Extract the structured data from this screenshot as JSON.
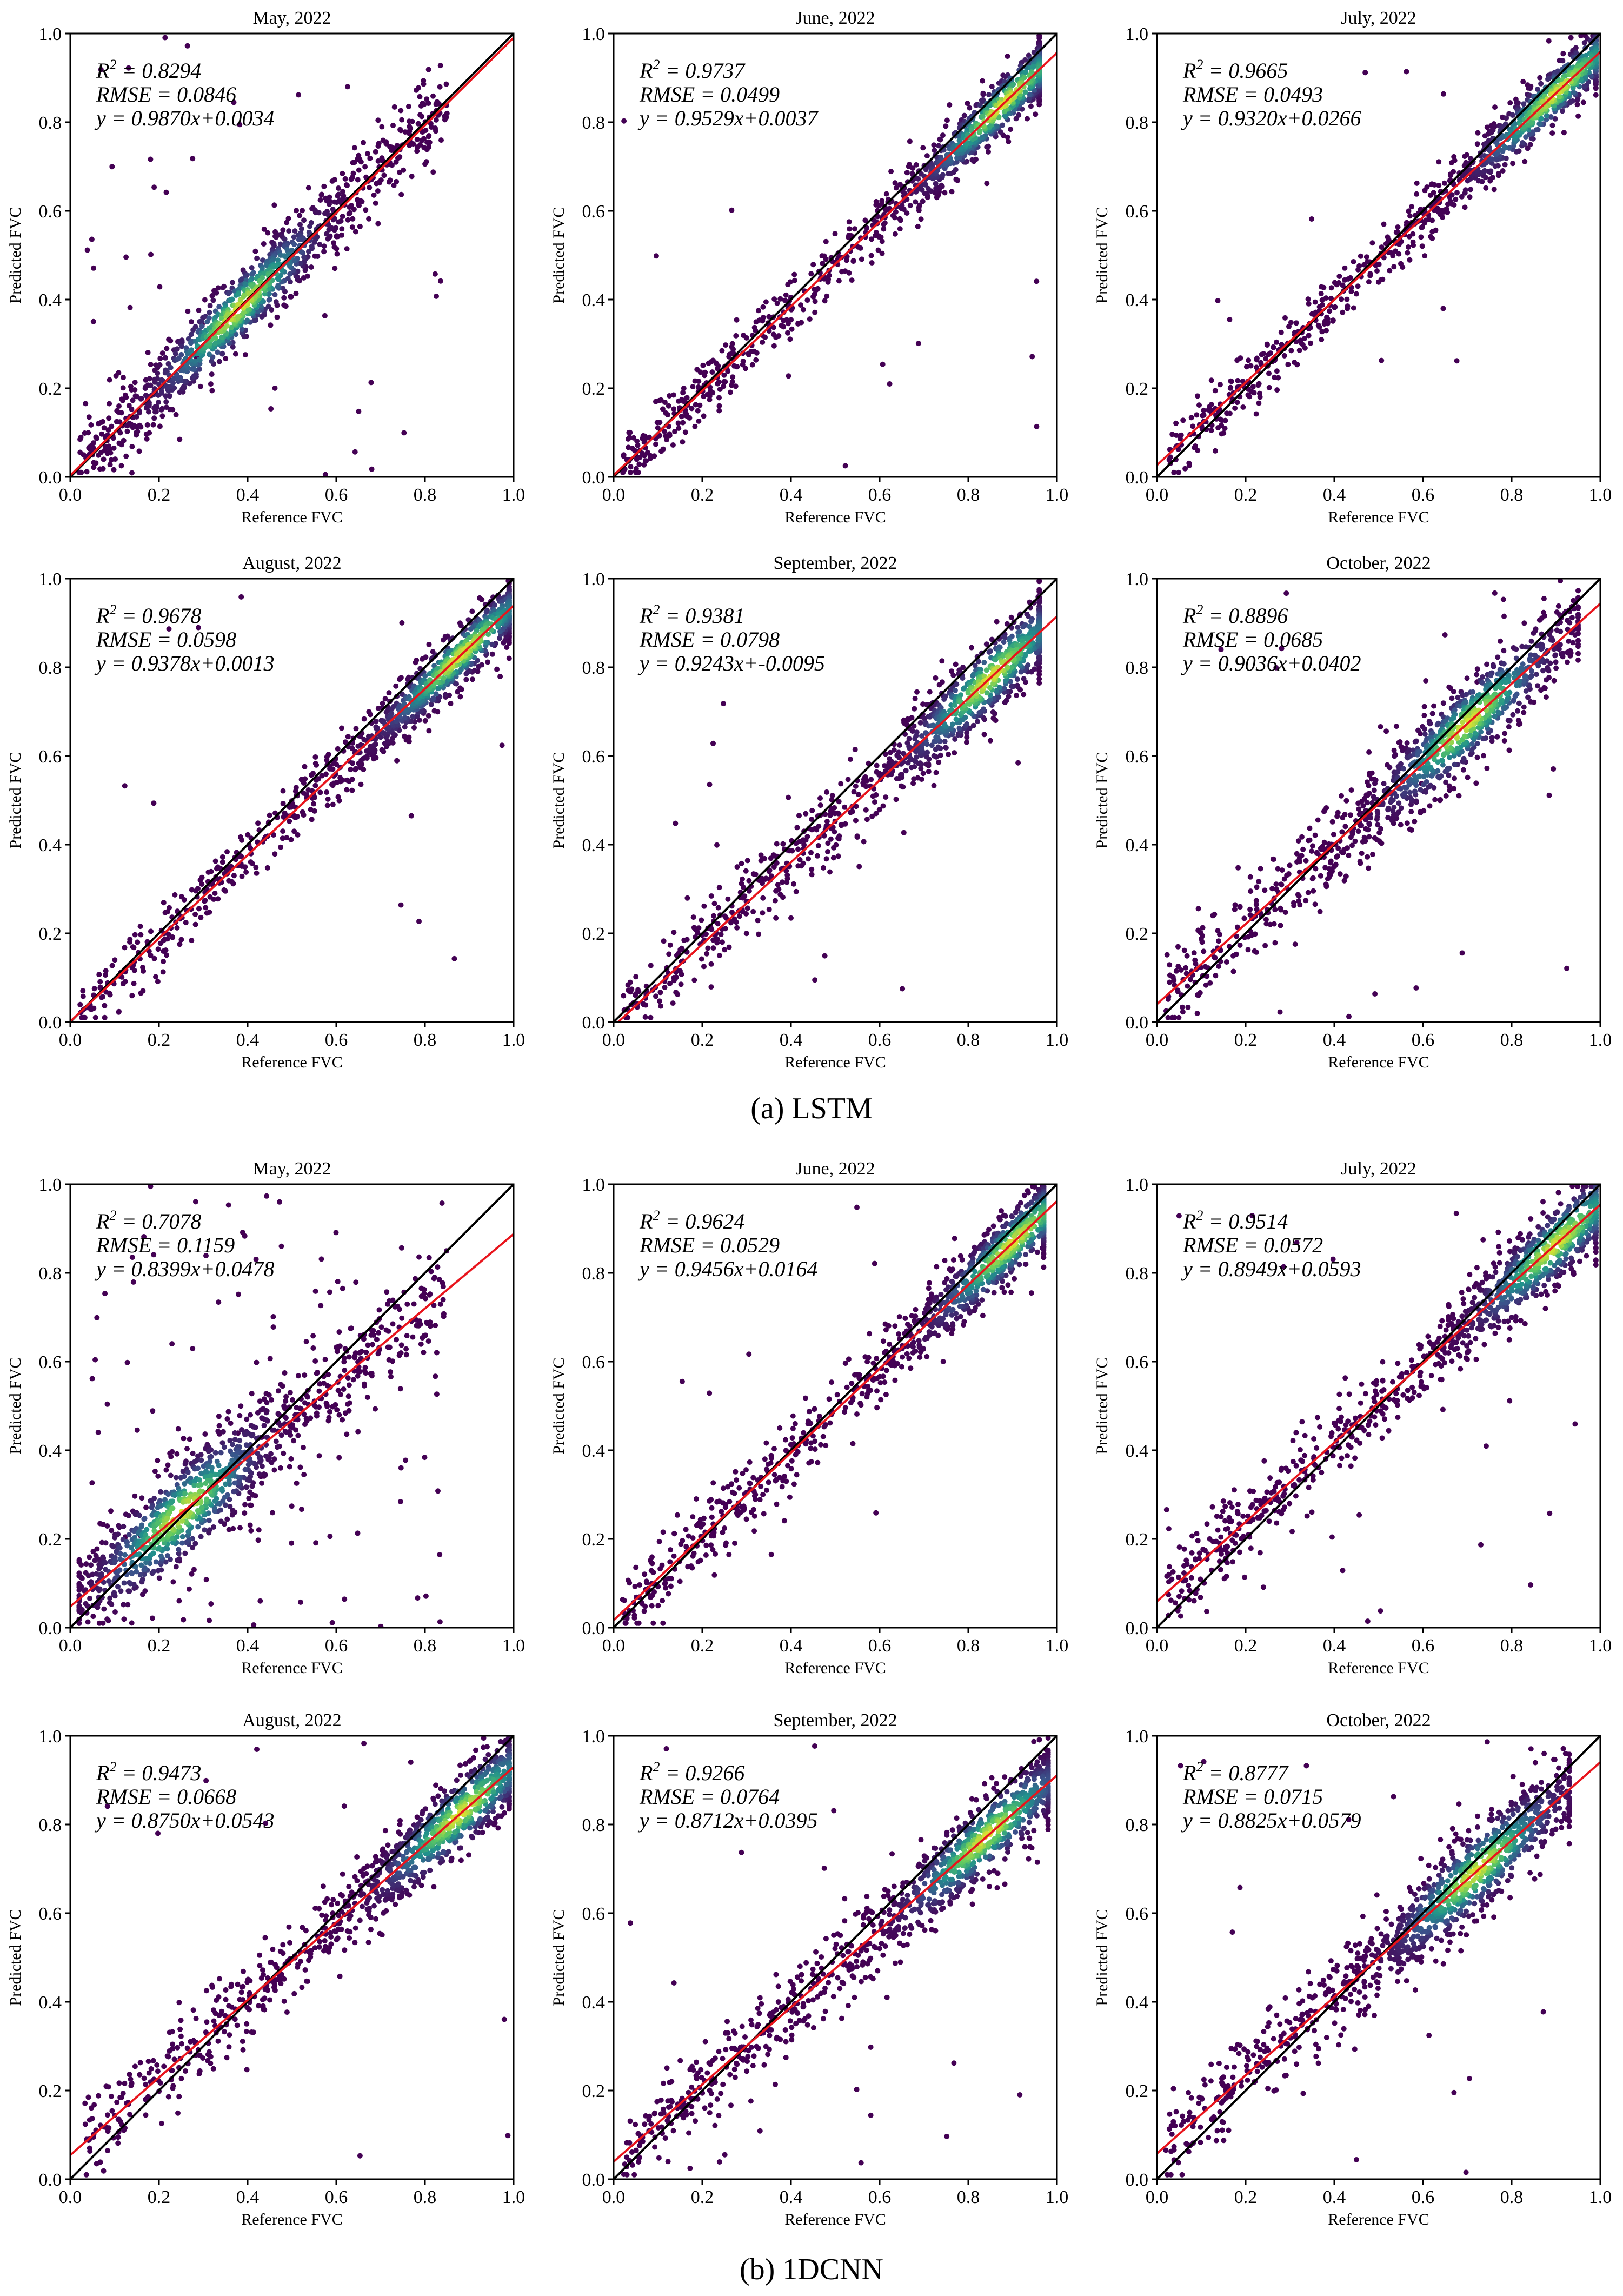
{
  "figure": {
    "captions": [
      "(a) LSTM",
      "(b) 1DCNN"
    ],
    "colors": {
      "reference_line": "#000000",
      "fit_line": "#e8141c",
      "density_low": "#440154",
      "density_mid": "#21918c",
      "density_high": "#fde725"
    }
  },
  "chart_data": [
    {
      "type": "scatter",
      "model": "LSTM",
      "title": "May, 2022",
      "xlabel": "Reference FVC",
      "ylabel": "Predicted FVC",
      "xlim": [
        0,
        1
      ],
      "ylim": [
        0,
        1
      ],
      "xticks": [
        "0.0",
        "0.2",
        "0.4",
        "0.6",
        "0.8",
        "1.0"
      ],
      "yticks": [
        "0.0",
        "0.2",
        "0.4",
        "0.6",
        "0.8",
        "1.0"
      ],
      "r2_text": "= 0.8294",
      "rmse_text": "RMSE = 0.0846",
      "eq_text": "y = 0.9870x+0.0034",
      "fit": {
        "slope": 0.987,
        "intercept": 0.0034
      },
      "spread": 0.045,
      "x_range": [
        0.02,
        0.85
      ],
      "density_center": 0.38,
      "outlier_frac": 0.05
    },
    {
      "type": "scatter",
      "model": "LSTM",
      "title": "June, 2022",
      "xlabel": "Reference FVC",
      "ylabel": "Predicted FVC",
      "xlim": [
        0,
        1
      ],
      "ylim": [
        0,
        1
      ],
      "xticks": [
        "0.0",
        "0.2",
        "0.4",
        "0.6",
        "0.8",
        "1.0"
      ],
      "yticks": [
        "0.0",
        "0.2",
        "0.4",
        "0.6",
        "0.8",
        "1.0"
      ],
      "r2_text": "= 0.9737",
      "rmse_text": "RMSE = 0.0499",
      "eq_text": "y = 0.9529x+0.0037",
      "fit": {
        "slope": 0.9529,
        "intercept": 0.0037
      },
      "spread": 0.035,
      "x_range": [
        0.02,
        0.96
      ],
      "density_center": 0.88,
      "outlier_frac": 0.01
    },
    {
      "type": "scatter",
      "model": "LSTM",
      "title": "July, 2022",
      "xlabel": "Reference FVC",
      "ylabel": "Predicted FVC",
      "xlim": [
        0,
        1
      ],
      "ylim": [
        0,
        1
      ],
      "xticks": [
        "0.0",
        "0.2",
        "0.4",
        "0.6",
        "0.8",
        "1.0"
      ],
      "yticks": [
        "0.0",
        "0.2",
        "0.4",
        "0.6",
        "0.8",
        "1.0"
      ],
      "r2_text": "= 0.9665",
      "rmse_text": "RMSE = 0.0493",
      "eq_text": "y = 0.9320x+0.0266",
      "fit": {
        "slope": 0.932,
        "intercept": 0.0266
      },
      "spread": 0.035,
      "x_range": [
        0.02,
        0.99
      ],
      "density_center": 0.9,
      "outlier_frac": 0.01
    },
    {
      "type": "scatter",
      "model": "LSTM",
      "title": "August, 2022",
      "xlabel": "Reference FVC",
      "ylabel": "Predicted FVC",
      "xlim": [
        0,
        1
      ],
      "ylim": [
        0,
        1
      ],
      "xticks": [
        "0.0",
        "0.2",
        "0.4",
        "0.6",
        "0.8",
        "1.0"
      ],
      "yticks": [
        "0.0",
        "0.2",
        "0.4",
        "0.6",
        "0.8",
        "1.0"
      ],
      "r2_text": "= 0.9678",
      "rmse_text": "RMSE = 0.0598",
      "eq_text": "y = 0.9378x+0.0013",
      "fit": {
        "slope": 0.9378,
        "intercept": 0.0013
      },
      "spread": 0.035,
      "x_range": [
        0.02,
        0.99
      ],
      "density_center": 0.88,
      "outlier_frac": 0.01
    },
    {
      "type": "scatter",
      "model": "LSTM",
      "title": "September, 2022",
      "xlabel": "Reference FVC",
      "ylabel": "Predicted FVC",
      "xlim": [
        0,
        1
      ],
      "ylim": [
        0,
        1
      ],
      "xticks": [
        "0.0",
        "0.2",
        "0.4",
        "0.6",
        "0.8",
        "1.0"
      ],
      "yticks": [
        "0.0",
        "0.2",
        "0.4",
        "0.6",
        "0.8",
        "1.0"
      ],
      "r2_text": "= 0.9381",
      "rmse_text": "RMSE = 0.0798",
      "eq_text": "y = 0.9243x+-0.0095",
      "fit": {
        "slope": 0.9243,
        "intercept": -0.0095
      },
      "spread": 0.045,
      "x_range": [
        0.02,
        0.96
      ],
      "density_center": 0.85,
      "outlier_frac": 0.015
    },
    {
      "type": "scatter",
      "model": "LSTM",
      "title": "October, 2022",
      "xlabel": "Reference FVC",
      "ylabel": "Predicted FVC",
      "xlim": [
        0,
        1
      ],
      "ylim": [
        0,
        1
      ],
      "xticks": [
        "0.0",
        "0.2",
        "0.4",
        "0.6",
        "0.8",
        "1.0"
      ],
      "yticks": [
        "0.0",
        "0.2",
        "0.4",
        "0.6",
        "0.8",
        "1.0"
      ],
      "r2_text": "= 0.8896",
      "rmse_text": "RMSE = 0.0685",
      "eq_text": "y = 0.9036x+0.0402",
      "fit": {
        "slope": 0.9036,
        "intercept": 0.0402
      },
      "spread": 0.05,
      "x_range": [
        0.02,
        0.95
      ],
      "density_center": 0.7,
      "outlier_frac": 0.02
    },
    {
      "type": "scatter",
      "model": "1DCNN",
      "title": "May, 2022",
      "xlabel": "Reference FVC",
      "ylabel": "Predicted FVC",
      "xlim": [
        0,
        1
      ],
      "ylim": [
        0,
        1
      ],
      "xticks": [
        "0.0",
        "0.2",
        "0.4",
        "0.6",
        "0.8",
        "1.0"
      ],
      "yticks": [
        "0.0",
        "0.2",
        "0.4",
        "0.6",
        "0.8",
        "1.0"
      ],
      "r2_text": "= 0.7078",
      "rmse_text": "RMSE = 0.1159",
      "eq_text": "y = 0.8399x+0.0478",
      "fit": {
        "slope": 0.8399,
        "intercept": 0.0478
      },
      "spread": 0.06,
      "x_range": [
        0.02,
        0.85
      ],
      "density_center": 0.25,
      "outlier_frac": 0.08
    },
    {
      "type": "scatter",
      "model": "1DCNN",
      "title": "June, 2022",
      "xlabel": "Reference FVC",
      "ylabel": "Predicted FVC",
      "xlim": [
        0,
        1
      ],
      "ylim": [
        0,
        1
      ],
      "xticks": [
        "0.0",
        "0.2",
        "0.4",
        "0.6",
        "0.8",
        "1.0"
      ],
      "yticks": [
        "0.0",
        "0.2",
        "0.4",
        "0.6",
        "0.8",
        "1.0"
      ],
      "r2_text": "= 0.9624",
      "rmse_text": "RMSE = 0.0529",
      "eq_text": "y = 0.9456x+0.0164",
      "fit": {
        "slope": 0.9456,
        "intercept": 0.0164
      },
      "spread": 0.04,
      "x_range": [
        0.02,
        0.97
      ],
      "density_center": 0.9,
      "outlier_frac": 0.01
    },
    {
      "type": "scatter",
      "model": "1DCNN",
      "title": "July, 2022",
      "xlabel": "Reference FVC",
      "ylabel": "Predicted FVC",
      "xlim": [
        0,
        1
      ],
      "ylim": [
        0,
        1
      ],
      "xticks": [
        "0.0",
        "0.2",
        "0.4",
        "0.6",
        "0.8",
        "1.0"
      ],
      "yticks": [
        "0.0",
        "0.2",
        "0.4",
        "0.6",
        "0.8",
        "1.0"
      ],
      "r2_text": "= 0.9514",
      "rmse_text": "RMSE = 0.0572",
      "eq_text": "y = 0.8949x+0.0593",
      "fit": {
        "slope": 0.8949,
        "intercept": 0.0593
      },
      "spread": 0.045,
      "x_range": [
        0.02,
        0.99
      ],
      "density_center": 0.9,
      "outlier_frac": 0.02
    },
    {
      "type": "scatter",
      "model": "1DCNN",
      "title": "August, 2022",
      "xlabel": "Reference FVC",
      "ylabel": "Predicted FVC",
      "xlim": [
        0,
        1
      ],
      "ylim": [
        0,
        1
      ],
      "xticks": [
        "0.0",
        "0.2",
        "0.4",
        "0.6",
        "0.8",
        "1.0"
      ],
      "yticks": [
        "0.0",
        "0.2",
        "0.4",
        "0.6",
        "0.8",
        "1.0"
      ],
      "r2_text": "= 0.9473",
      "rmse_text": "RMSE = 0.0668",
      "eq_text": "y = 0.8750x+0.0543",
      "fit": {
        "slope": 0.875,
        "intercept": 0.0543
      },
      "spread": 0.045,
      "x_range": [
        0.02,
        0.99
      ],
      "density_center": 0.88,
      "outlier_frac": 0.015
    },
    {
      "type": "scatter",
      "model": "1DCNN",
      "title": "September, 2022",
      "xlabel": "Reference FVC",
      "ylabel": "Predicted FVC",
      "xlim": [
        0,
        1
      ],
      "ylim": [
        0,
        1
      ],
      "xticks": [
        "0.0",
        "0.2",
        "0.4",
        "0.6",
        "0.8",
        "1.0"
      ],
      "yticks": [
        "0.0",
        "0.2",
        "0.4",
        "0.6",
        "0.8",
        "1.0"
      ],
      "r2_text": "= 0.9266",
      "rmse_text": "RMSE = 0.0764",
      "eq_text": "y = 0.8712x+0.0395",
      "fit": {
        "slope": 0.8712,
        "intercept": 0.0395
      },
      "spread": 0.045,
      "x_range": [
        0.02,
        0.98
      ],
      "density_center": 0.84,
      "outlier_frac": 0.02
    },
    {
      "type": "scatter",
      "model": "1DCNN",
      "title": "October, 2022",
      "xlabel": "Reference FVC",
      "ylabel": "Predicted FVC",
      "xlim": [
        0,
        1
      ],
      "ylim": [
        0,
        1
      ],
      "xticks": [
        "0.0",
        "0.2",
        "0.4",
        "0.6",
        "0.8",
        "1.0"
      ],
      "yticks": [
        "0.0",
        "0.2",
        "0.4",
        "0.6",
        "0.8",
        "1.0"
      ],
      "r2_text": "= 0.8777",
      "rmse_text": "RMSE = 0.0715",
      "eq_text": "y = 0.8825x+0.0579",
      "fit": {
        "slope": 0.8825,
        "intercept": 0.0579
      },
      "spread": 0.05,
      "x_range": [
        0.02,
        0.93
      ],
      "density_center": 0.72,
      "outlier_frac": 0.02
    }
  ]
}
